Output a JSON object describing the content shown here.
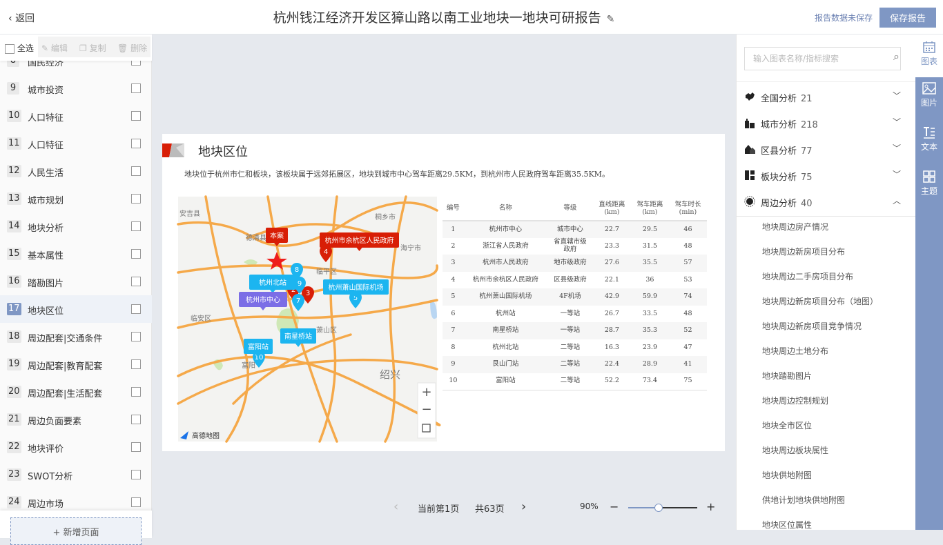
{
  "header": {
    "back_label": "返回",
    "title": "杭州钱江经济开发区獐山路以南工业地块一地块可研报告",
    "unsaved": "报告数据未保存",
    "save_label": "保存报告"
  },
  "toolbar": {
    "select_all": "全选",
    "edit": "编辑",
    "copy": "复制",
    "delete": "删除"
  },
  "pages": [
    {
      "n": "8",
      "label": "国民经济"
    },
    {
      "n": "9",
      "label": "城市投资"
    },
    {
      "n": "10",
      "label": "人口特征"
    },
    {
      "n": "11",
      "label": "人口特征"
    },
    {
      "n": "12",
      "label": "人民生活"
    },
    {
      "n": "13",
      "label": "城市规划"
    },
    {
      "n": "14",
      "label": "地块分析"
    },
    {
      "n": "15",
      "label": "基本属性"
    },
    {
      "n": "16",
      "label": "踏勘图片"
    },
    {
      "n": "17",
      "label": "地块区位",
      "active": true
    },
    {
      "n": "18",
      "label": "周边配套|交通条件"
    },
    {
      "n": "19",
      "label": "周边配套|教育配套"
    },
    {
      "n": "20",
      "label": "周边配套|生活配套"
    },
    {
      "n": "21",
      "label": "周边负面要素"
    },
    {
      "n": "22",
      "label": "地块评价"
    },
    {
      "n": "23",
      "label": "SWOT分析"
    },
    {
      "n": "24",
      "label": "周边市场"
    }
  ],
  "add_page": "+ 新增页面",
  "section": {
    "title": "地块区位",
    "desc": "地块位于杭州市仁和板块，该板块属于远郊拓展区，地块到城市中心驾车距离29.5KM，到杭州市人民政府驾车距离35.5KM。"
  },
  "map": {
    "attribution": "高德地图",
    "place_labels": [
      "安吉县",
      "德清县",
      "桐乡市",
      "海宁市",
      "临平区",
      "临安区",
      "富阳",
      "绍兴",
      "萧山区"
    ],
    "callouts": [
      {
        "text": "本案",
        "color": "#d81e06"
      },
      {
        "text": "杭州市余杭区人民政府",
        "color": "#d81e06"
      },
      {
        "text": "杭州北站",
        "color": "#1cb5f0"
      },
      {
        "text": "杭州萧山国际机场",
        "color": "#1cb5f0"
      },
      {
        "text": "杭州市中心",
        "color": "#7b6ee6"
      },
      {
        "text": "南星桥站",
        "color": "#1cb5f0"
      },
      {
        "text": "富阳站",
        "color": "#1cb5f0"
      }
    ],
    "markers": [
      {
        "n": "2",
        "color": "#d81e06"
      },
      {
        "n": "3",
        "color": "#d81e06"
      },
      {
        "n": "4",
        "color": "#d81e06"
      },
      {
        "n": "5",
        "color": "#1cb5f0"
      },
      {
        "n": "7",
        "color": "#1cb5f0"
      },
      {
        "n": "8",
        "color": "#1cb5f0"
      },
      {
        "n": "9",
        "color": "#1cb5f0"
      },
      {
        "n": "10",
        "color": "#1cb5f0"
      }
    ],
    "zoom_in": "+",
    "zoom_out": "−"
  },
  "table": {
    "headers": [
      "编号",
      "名称",
      "等级",
      "直线距离\n(km)",
      "驾车距离\n(km)",
      "驾车时长\n(min)"
    ],
    "rows": [
      [
        "1",
        "杭州市中心",
        "城市中心",
        "22.7",
        "29.5",
        "46"
      ],
      [
        "2",
        "浙江省人民政府",
        "省直辖市级政府",
        "23.3",
        "31.5",
        "48"
      ],
      [
        "3",
        "杭州市人民政府",
        "地市级政府",
        "27.6",
        "35.5",
        "57"
      ],
      [
        "4",
        "杭州市余杭区人民政府",
        "区县级政府",
        "22.1",
        "36",
        "53"
      ],
      [
        "5",
        "杭州萧山国际机场",
        "4F机场",
        "42.9",
        "59.9",
        "74"
      ],
      [
        "6",
        "杭州站",
        "一等站",
        "26.7",
        "33.5",
        "48"
      ],
      [
        "7",
        "南星桥站",
        "一等站",
        "28.7",
        "35.3",
        "52"
      ],
      [
        "8",
        "杭州北站",
        "二等站",
        "16.3",
        "23.9",
        "47"
      ],
      [
        "9",
        "艮山门站",
        "二等站",
        "22.4",
        "28.9",
        "41"
      ],
      [
        "10",
        "富阳站",
        "二等站",
        "52.2",
        "73.4",
        "75"
      ]
    ]
  },
  "pager": {
    "current": "当前第1页",
    "total": "共63页",
    "zoom": "90%",
    "zoom_percent": 90
  },
  "right": {
    "search_placeholder": "输入图表名称/指标搜索",
    "categories": [
      {
        "name": "全国分析",
        "count": "21",
        "icon": "china-map-icon",
        "expanded": false
      },
      {
        "name": "城市分析",
        "count": "218",
        "icon": "city-buildings-icon",
        "expanded": false
      },
      {
        "name": "区县分析",
        "count": "77",
        "icon": "houses-icon",
        "expanded": false
      },
      {
        "name": "板块分析",
        "count": "75",
        "icon": "blocks-icon",
        "expanded": false
      },
      {
        "name": "周边分析",
        "count": "40",
        "icon": "radius-icon",
        "expanded": true
      }
    ],
    "sub_items": [
      "地块周边房产情况",
      "地块周边新房项目分布",
      "地块周边二手房项目分布",
      "地块周边新房项目分布（地图）",
      "地块周边新房项目竞争情况",
      "地块周边土地分布",
      "地块踏勘图片",
      "地块周边控制规划",
      "地块全市区位",
      "地块周边板块属性",
      "地块供地附图",
      "供地计划地块供地附图",
      "地块区位属性"
    ]
  },
  "rtabs": [
    {
      "label": "图表",
      "icon": "calendar-chart-icon"
    },
    {
      "label": "图片",
      "icon": "image-icon"
    },
    {
      "label": "文本",
      "icon": "text-icon"
    },
    {
      "label": "主题",
      "icon": "grid-theme-icon"
    }
  ],
  "colors": {
    "accent": "#7f97c4",
    "red": "#d81e06",
    "cyan": "#1cb5f0",
    "purple": "#7b6ee6",
    "road": "#f5a94a"
  }
}
